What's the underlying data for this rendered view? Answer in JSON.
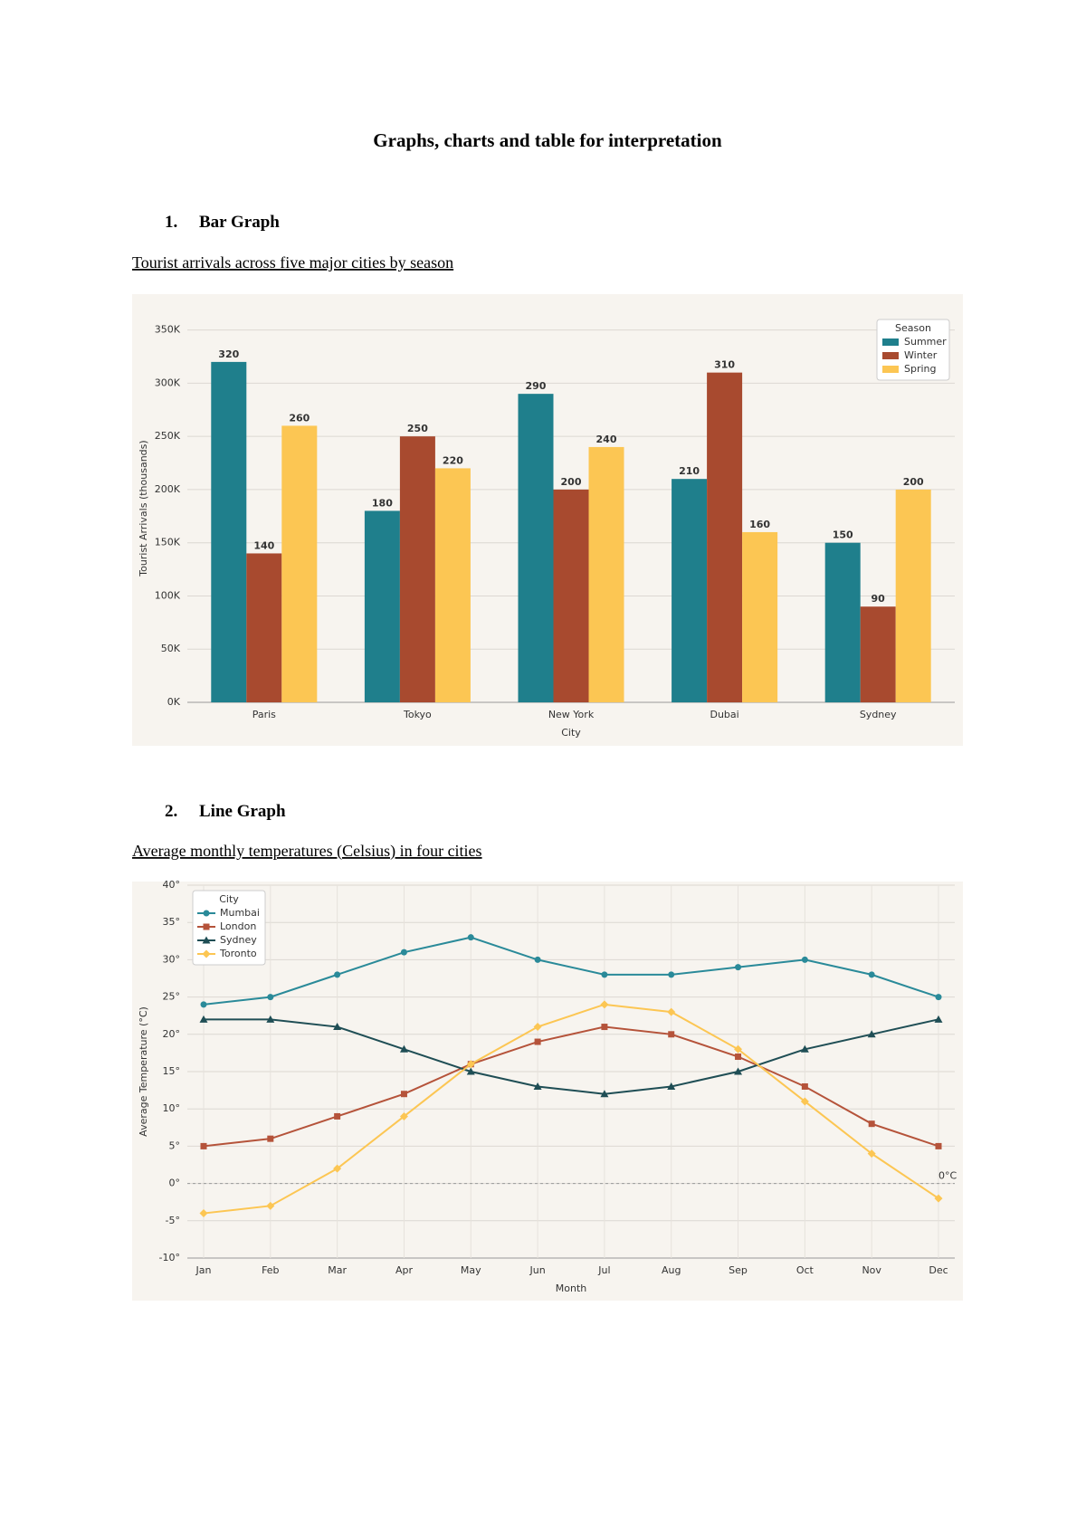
{
  "header": {
    "title": "Graphs, charts and table for interpretation"
  },
  "sections": [
    {
      "number": "1.",
      "heading": "Bar Graph",
      "caption": "Tourist arrivals across five major cities by season"
    },
    {
      "number": "2.",
      "heading": "Line Graph",
      "caption": "Average monthly temperatures (Celsius) in four cities"
    }
  ],
  "chart_data": [
    {
      "type": "bar",
      "x_label": "City",
      "y_label": "Tourist Arrivals (thousands)",
      "categories": [
        "Paris",
        "Tokyo",
        "New York",
        "Dubai",
        "Sydney"
      ],
      "series": [
        {
          "name": "Summer",
          "color": "#1f7f8c",
          "values": [
            320,
            180,
            290,
            210,
            150
          ]
        },
        {
          "name": "Winter",
          "color": "#a84a2f",
          "values": [
            140,
            250,
            200,
            310,
            90
          ]
        },
        {
          "name": "Spring",
          "color": "#fcc653",
          "values": [
            260,
            220,
            240,
            160,
            200
          ]
        }
      ],
      "ylim": [
        0,
        365
      ],
      "yticks": [
        {
          "value": 0,
          "label": "0K"
        },
        {
          "value": 50,
          "label": "50K"
        },
        {
          "value": 100,
          "label": "100K"
        },
        {
          "value": 150,
          "label": "150K"
        },
        {
          "value": 200,
          "label": "200K"
        },
        {
          "value": 250,
          "label": "250K"
        },
        {
          "value": 300,
          "label": "300K"
        },
        {
          "value": 350,
          "label": "350K"
        }
      ],
      "grid": true,
      "legend_title": "Season",
      "legend_position": "upper right"
    },
    {
      "type": "line",
      "x_label": "Month",
      "y_label": "Average Temperature (°C)",
      "categories": [
        "Jan",
        "Feb",
        "Mar",
        "Apr",
        "May",
        "Jun",
        "Jul",
        "Aug",
        "Sep",
        "Oct",
        "Nov",
        "Dec"
      ],
      "series": [
        {
          "name": "Mumbai",
          "color": "#2a8a99",
          "marker": "circle",
          "values": [
            24,
            25,
            28,
            31,
            33,
            30,
            28,
            28,
            29,
            30,
            28,
            25
          ]
        },
        {
          "name": "London",
          "color": "#b5533a",
          "marker": "square",
          "values": [
            5,
            6,
            9,
            12,
            16,
            19,
            21,
            20,
            17,
            13,
            8,
            5
          ]
        },
        {
          "name": "Sydney",
          "color": "#1f4e55",
          "marker": "triangle",
          "values": [
            22,
            22,
            21,
            18,
            15,
            13,
            12,
            13,
            15,
            18,
            20,
            22
          ]
        },
        {
          "name": "Toronto",
          "color": "#fcc653",
          "marker": "diamond",
          "values": [
            -4,
            -3,
            2,
            9,
            16,
            21,
            24,
            23,
            18,
            11,
            4,
            -2
          ]
        }
      ],
      "ylim": [
        -10,
        40
      ],
      "yticks": [
        {
          "value": -10,
          "label": "-10°"
        },
        {
          "value": -5,
          "label": "-5°"
        },
        {
          "value": 0,
          "label": "0°"
        },
        {
          "value": 5,
          "label": "5°"
        },
        {
          "value": 10,
          "label": "10°"
        },
        {
          "value": 15,
          "label": "15°"
        },
        {
          "value": 20,
          "label": "20°"
        },
        {
          "value": 25,
          "label": "25°"
        },
        {
          "value": 30,
          "label": "30°"
        },
        {
          "value": 35,
          "label": "35°"
        },
        {
          "value": 40,
          "label": "40°"
        }
      ],
      "annotations": [
        {
          "text": "0°C",
          "y": 0
        }
      ],
      "grid": true,
      "legend_title": "City",
      "legend_position": "upper left"
    }
  ]
}
